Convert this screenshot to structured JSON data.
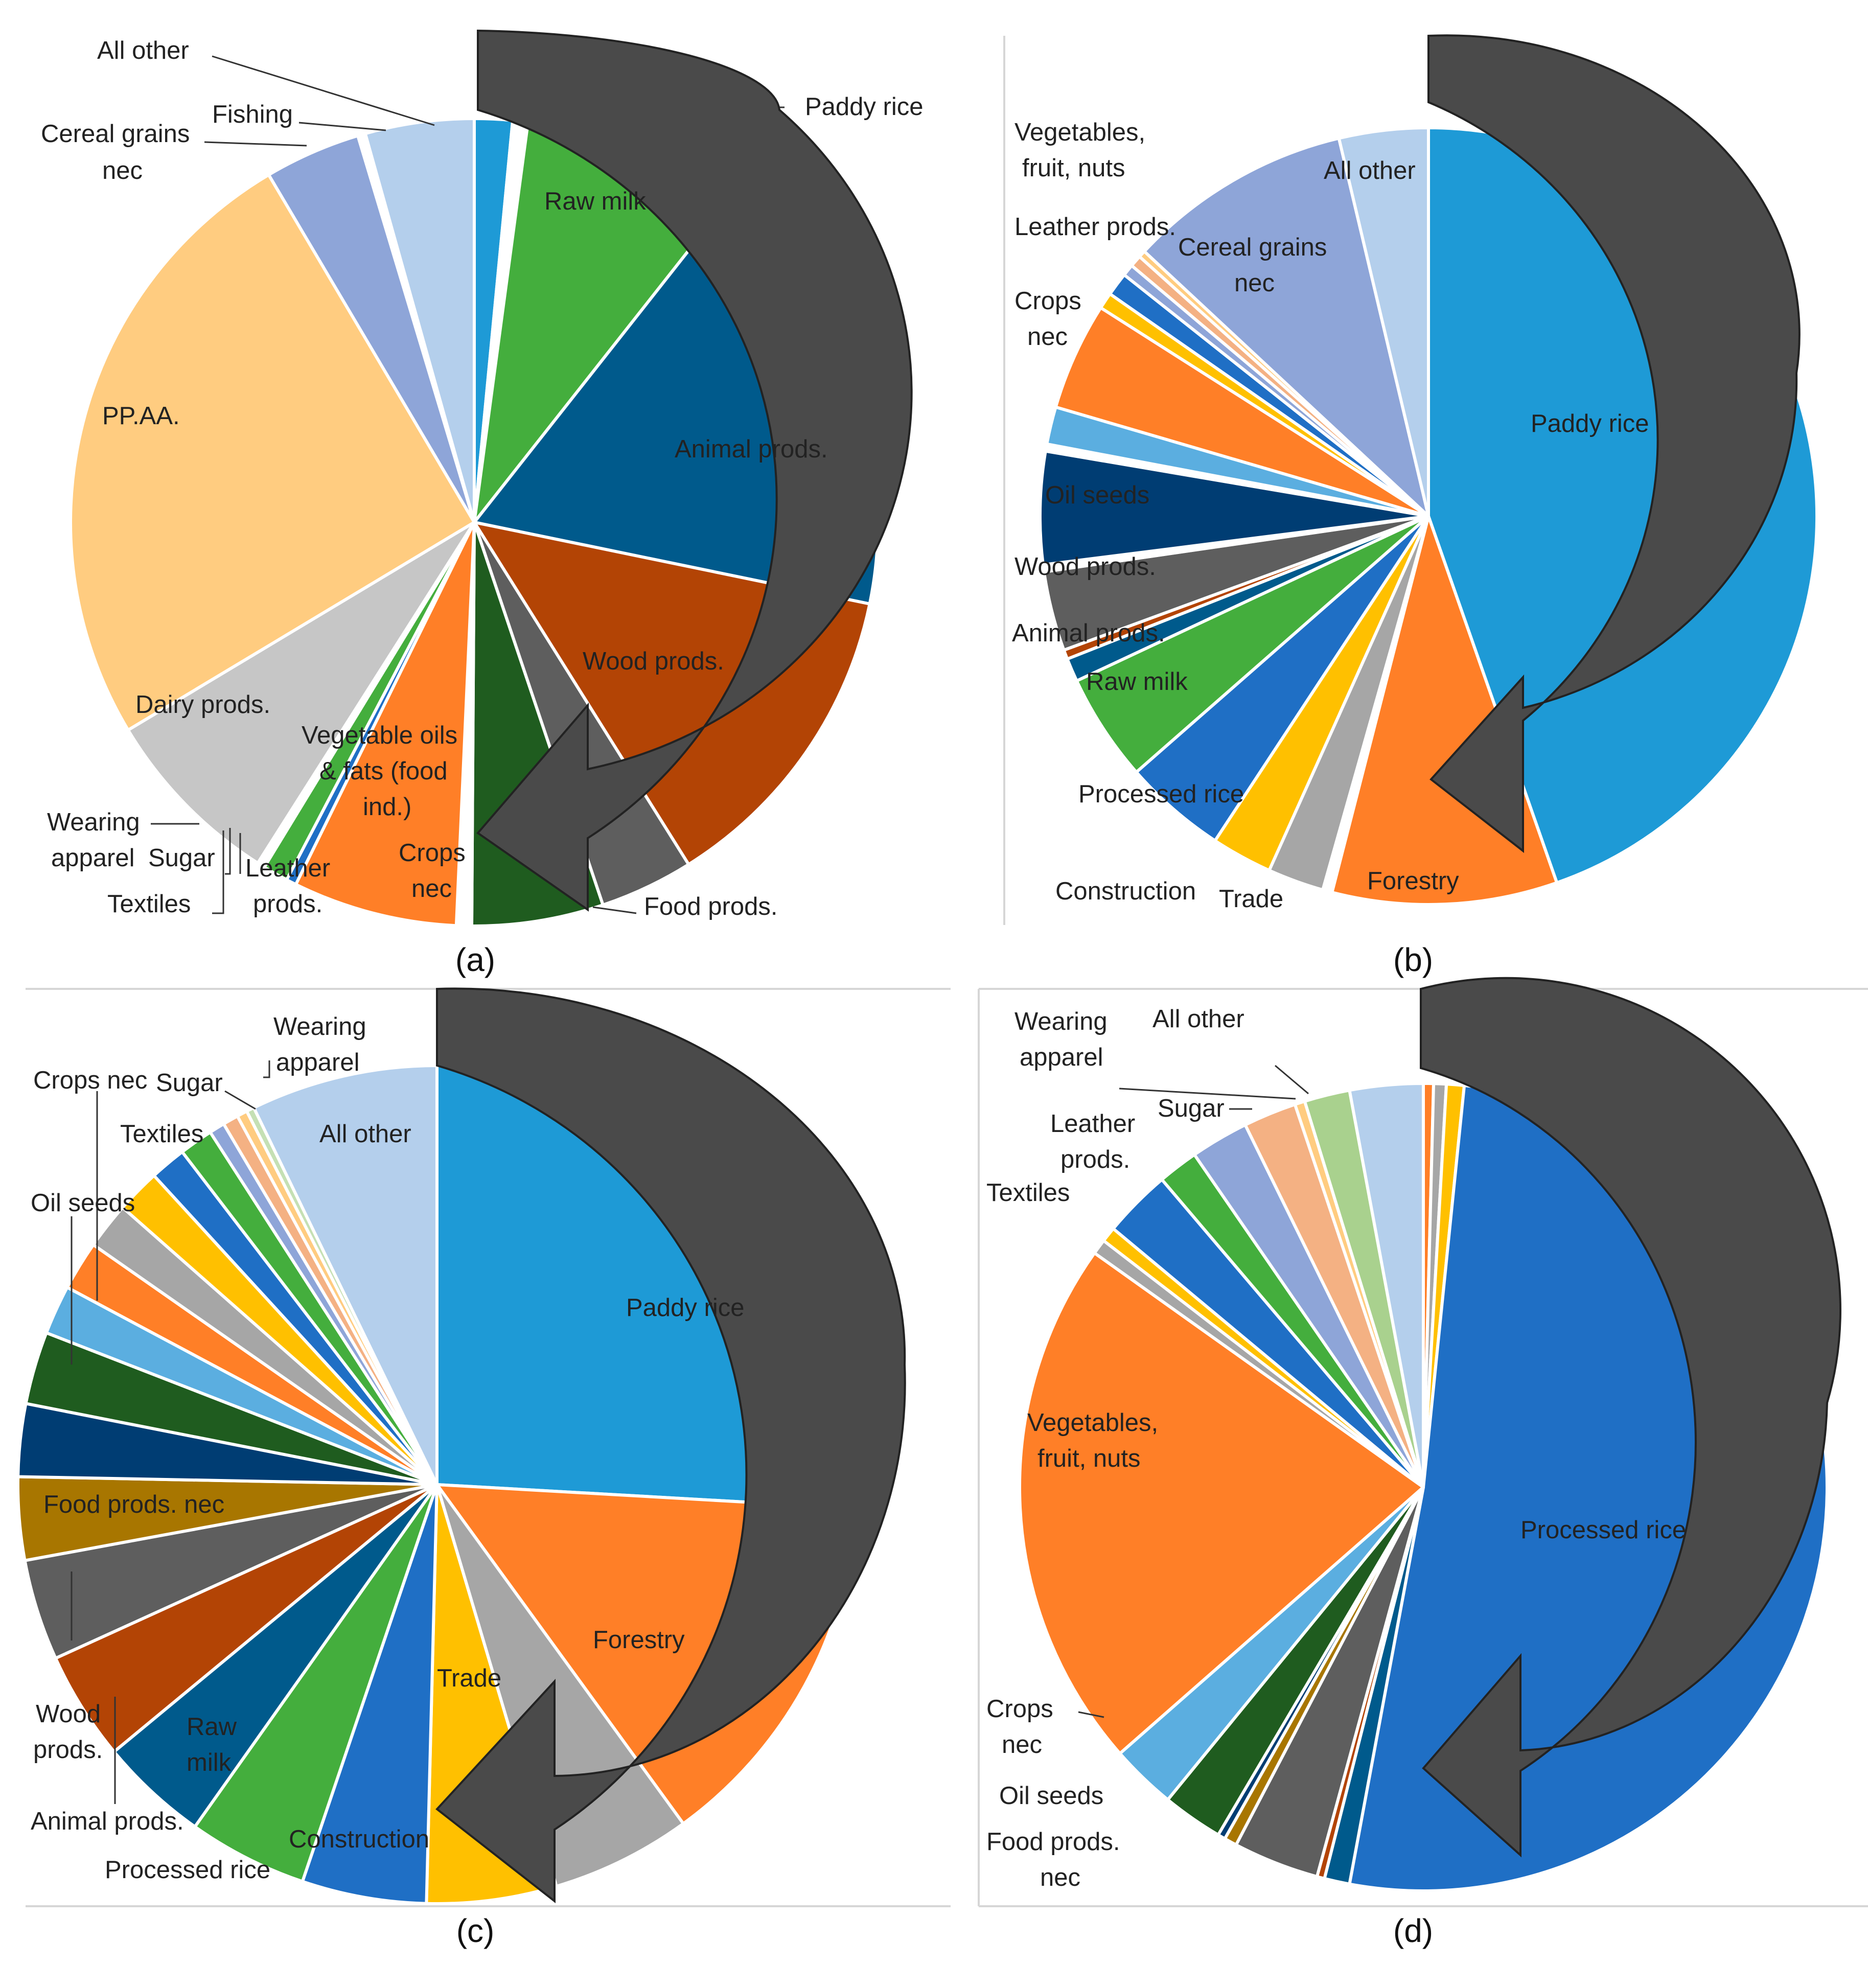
{
  "figure": {
    "panels": [
      "(a)",
      "(b)",
      "(c)",
      "(d)"
    ]
  },
  "chart_data": [
    {
      "panel": "(a)",
      "type": "pie",
      "unit": "share of total (%)",
      "slices": [
        {
          "label": "Paddy rice",
          "value": 1.5,
          "color": "#1e9ad6"
        },
        {
          "label": "",
          "value": 0.6,
          "color": "#ffffff"
        },
        {
          "label": "Raw milk",
          "value": 8.4,
          "color": "#44ae3d"
        },
        {
          "label": "Animal prods.",
          "value": 17.4,
          "color": "#005a8c"
        },
        {
          "label": "Wood prods.",
          "value": 12.7,
          "color": "#b34405"
        },
        {
          "label": "Food prods.",
          "value": 3.7,
          "color": "#5e5e5e"
        },
        {
          "label": "Crops nec",
          "value": 5.2,
          "color": "#1f5c1f"
        },
        {
          "label": "Vegetable oils & fats (food ind.)",
          "value": 0.6,
          "color": "#ffffff"
        },
        {
          "label": "Leather prods.",
          "value": 6.5,
          "color": "#ff7f27"
        },
        {
          "label": "Textiles",
          "value": 0.4,
          "color": "#1f6fc5"
        },
        {
          "label": "Sugar",
          "value": 1.0,
          "color": "#44ae3d"
        },
        {
          "label": "Wearing apparel",
          "value": 0.3,
          "color": "#ffffff"
        },
        {
          "label": "Dairy prods.",
          "value": 7.3,
          "color": "#c6c6c6"
        },
        {
          "label": "PP.AA.",
          "value": 24.8,
          "color": "#ffcc80"
        },
        {
          "label": "Cereal grains nec",
          "value": 3.8,
          "color": "#8ea5d8"
        },
        {
          "label": "Fishing",
          "value": 0.3,
          "color": "#ffffff"
        },
        {
          "label": "All other",
          "value": 4.3,
          "color": "#b4cfec"
        }
      ]
    },
    {
      "panel": "(b)",
      "type": "pie",
      "unit": "share of total (%)",
      "slices": [
        {
          "label": "Paddy rice",
          "value": 45.8,
          "color": "#1e9ad6"
        },
        {
          "label": "Forestry",
          "value": 9.6,
          "color": "#ff7f27"
        },
        {
          "label": "",
          "value": 0.4,
          "color": "#ffffff"
        },
        {
          "label": "Trade",
          "value": 2.4,
          "color": "#a6a6a6"
        },
        {
          "label": "Construction",
          "value": 2.6,
          "color": "#ffc000"
        },
        {
          "label": "Processed rice",
          "value": 4.4,
          "color": "#1f6fc5"
        },
        {
          "label": "Raw milk",
          "value": 4.6,
          "color": "#44ae3d"
        },
        {
          "label": "Animal prods.",
          "value": 1.0,
          "color": "#005a8c"
        },
        {
          "label": "",
          "value": 0.4,
          "color": "#b34405"
        },
        {
          "label": "Wood prods.",
          "value": 3.4,
          "color": "#5e5e5e"
        },
        {
          "label": "",
          "value": 0.3,
          "color": "#ffffff"
        },
        {
          "label": "Oil seeds",
          "value": 4.8,
          "color": "#003d73"
        },
        {
          "label": "",
          "value": 0.3,
          "color": "#ffffff"
        },
        {
          "label": "",
          "value": 1.6,
          "color": "#5baee0"
        },
        {
          "label": "Crops nec",
          "value": 4.6,
          "color": "#ff7f27"
        },
        {
          "label": "",
          "value": 0.7,
          "color": "#ffc000"
        },
        {
          "label": "",
          "value": 1.0,
          "color": "#1f6fc5"
        },
        {
          "label": "Leather prods.",
          "value": 0.5,
          "color": "#8ea5d8"
        },
        {
          "label": "",
          "value": 0.5,
          "color": "#f4b183"
        },
        {
          "label": "Vegetables, fruit, nuts",
          "value": 0.3,
          "color": "#ffcc80"
        },
        {
          "label": "Cereal grains nec",
          "value": 9.6,
          "color": "#8ea5d8"
        },
        {
          "label": "All other",
          "value": 3.8,
          "color": "#b4cfec"
        }
      ]
    },
    {
      "panel": "(c)",
      "type": "pie",
      "unit": "share of total (%)",
      "slices": [
        {
          "label": "Paddy rice",
          "value": 25.9,
          "color": "#1e9ad6"
        },
        {
          "label": "Forestry",
          "value": 14.1,
          "color": "#ff7f27"
        },
        {
          "label": "Trade",
          "value": 5.4,
          "color": "#a6a6a6"
        },
        {
          "label": "Construction",
          "value": 5.0,
          "color": "#ffc000"
        },
        {
          "label": "Processed rice",
          "value": 4.8,
          "color": "#1f6fc5"
        },
        {
          "label": "Raw milk",
          "value": 4.6,
          "color": "#44ae3d"
        },
        {
          "label": "Animal prods.",
          "value": 4.2,
          "color": "#005a8c"
        },
        {
          "label": "Wood prods.",
          "value": 4.2,
          "color": "#b34405"
        },
        {
          "label": "Food prods. nec",
          "value": 3.9,
          "color": "#5e5e5e"
        },
        {
          "label": "",
          "value": 3.2,
          "color": "#a87600"
        },
        {
          "label": "",
          "value": 2.8,
          "color": "#003d73"
        },
        {
          "label": "Oil seeds",
          "value": 2.8,
          "color": "#1f5c1f"
        },
        {
          "label": "",
          "value": 1.9,
          "color": "#5baee0"
        },
        {
          "label": "Crops nec",
          "value": 1.9,
          "color": "#ff7f27"
        },
        {
          "label": "",
          "value": 1.8,
          "color": "#a6a6a6"
        },
        {
          "label": "Textiles",
          "value": 1.7,
          "color": "#ffc000"
        },
        {
          "label": "",
          "value": 1.4,
          "color": "#1f6fc5"
        },
        {
          "label": "",
          "value": 1.3,
          "color": "#44ae3d"
        },
        {
          "label": "Sugar",
          "value": 0.6,
          "color": "#8ea5d8"
        },
        {
          "label": "Wearing apparel",
          "value": 0.6,
          "color": "#f4b183"
        },
        {
          "label": "",
          "value": 0.4,
          "color": "#ffcc80"
        },
        {
          "label": "",
          "value": 0.3,
          "color": "#c5e0b4"
        },
        {
          "label": "All other",
          "value": 7.2,
          "color": "#b4cfec"
        }
      ]
    },
    {
      "panel": "(d)",
      "type": "pie",
      "unit": "share of total (%)",
      "slices": [
        {
          "label": "",
          "value": 0.4,
          "color": "#ff7f27"
        },
        {
          "label": "",
          "value": 0.5,
          "color": "#a6a6a6"
        },
        {
          "label": "",
          "value": 0.7,
          "color": "#ffc000"
        },
        {
          "label": "Processed rice",
          "value": 50.8,
          "color": "#1f6fc5"
        },
        {
          "label": "",
          "value": 1.0,
          "color": "#005a8c"
        },
        {
          "label": "Food prods. nec",
          "value": 0.3,
          "color": "#b34405"
        },
        {
          "label": "",
          "value": 3.4,
          "color": "#5e5e5e"
        },
        {
          "label": "Oil seeds",
          "value": 0.5,
          "color": "#a87600"
        },
        {
          "label": "",
          "value": 0.3,
          "color": "#003d73"
        },
        {
          "label": "Crops nec",
          "value": 2.4,
          "color": "#1f5c1f"
        },
        {
          "label": "",
          "value": 2.6,
          "color": "#5baee0"
        },
        {
          "label": "Vegetables, fruit, nuts",
          "value": 21.1,
          "color": "#ff7f27"
        },
        {
          "label": "",
          "value": 0.6,
          "color": "#a6a6a6"
        },
        {
          "label": "Textiles",
          "value": 0.6,
          "color": "#ffc000"
        },
        {
          "label": "Leather prods.",
          "value": 2.7,
          "color": "#1f6fc5"
        },
        {
          "label": "",
          "value": 1.6,
          "color": "#44ae3d"
        },
        {
          "label": "Sugar",
          "value": 2.3,
          "color": "#8ea5d8"
        },
        {
          "label": "Wearing apparel",
          "value": 2.1,
          "color": "#f4b183"
        },
        {
          "label": "",
          "value": 0.4,
          "color": "#ffcc80"
        },
        {
          "label": "",
          "value": 1.8,
          "color": "#a9d18e"
        },
        {
          "label": "All other",
          "value": 2.9,
          "color": "#b4cfec"
        }
      ]
    }
  ]
}
